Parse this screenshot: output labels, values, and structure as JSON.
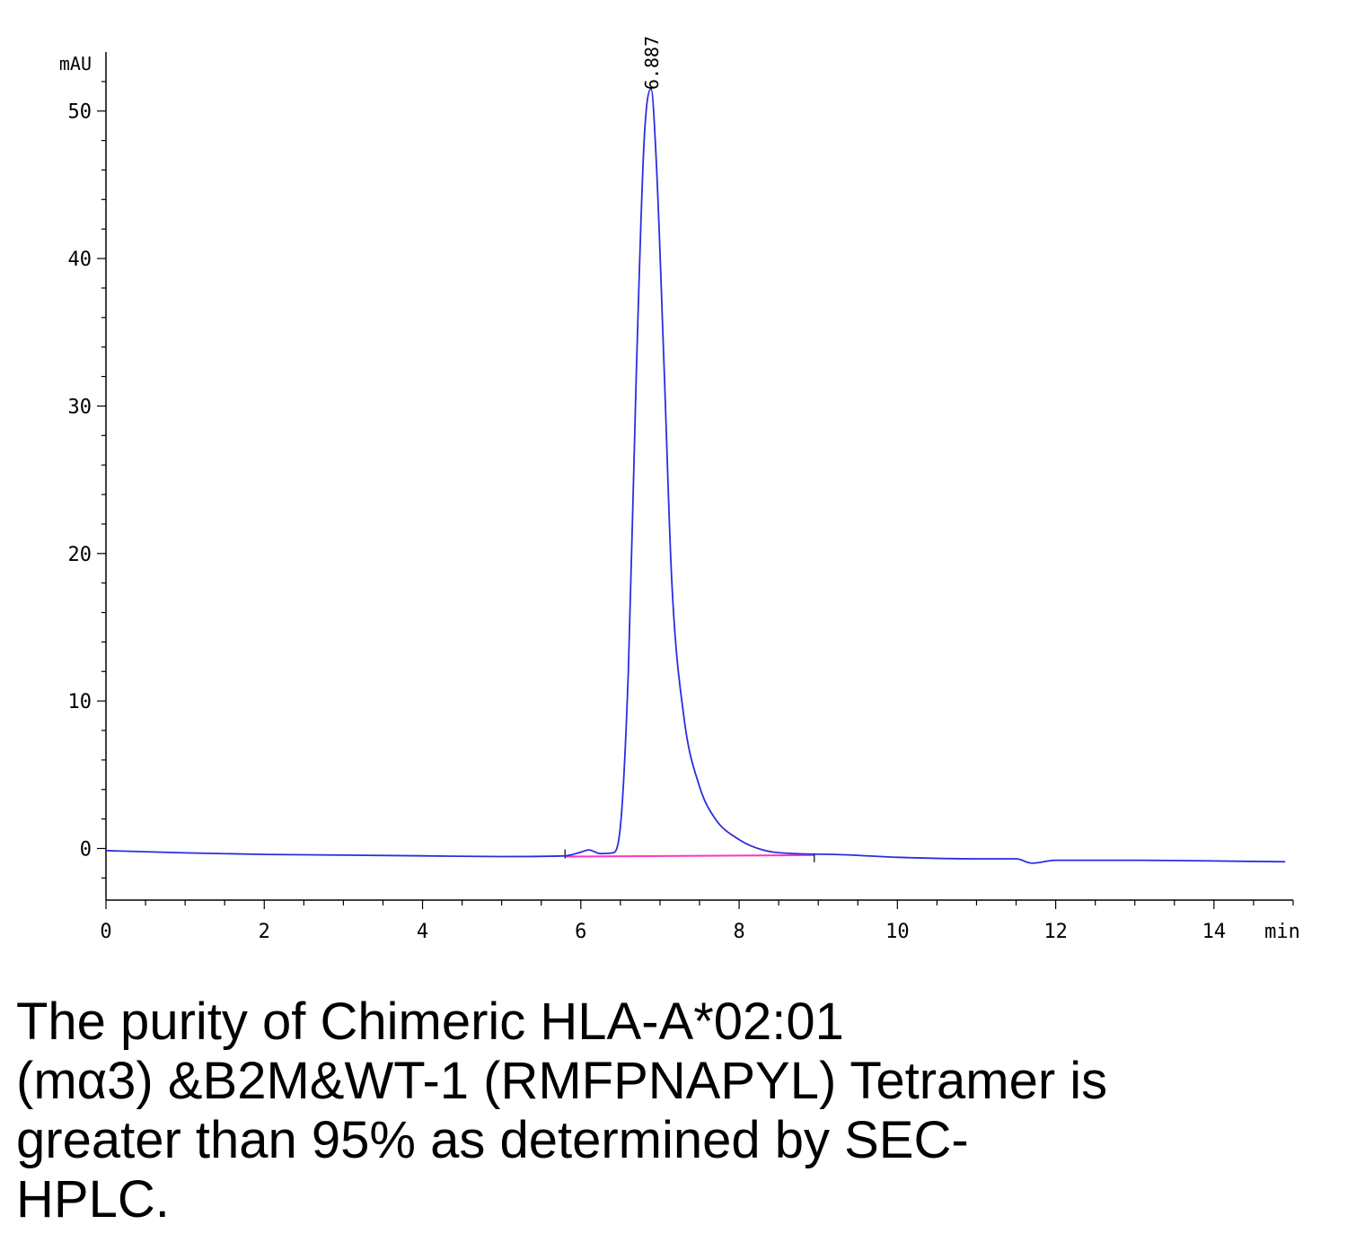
{
  "chart_data": {
    "type": "line",
    "title": "",
    "xlabel": "",
    "ylabel": "",
    "x_unit": "min",
    "y_unit": "mAU",
    "xlim": [
      0,
      15
    ],
    "ylim": [
      -3.5,
      54
    ],
    "x_ticks": [
      0,
      2,
      4,
      6,
      8,
      10,
      12,
      14
    ],
    "y_ticks": [
      0,
      10,
      20,
      30,
      40,
      50
    ],
    "grid": false,
    "legend": "none",
    "colors": {
      "signal": "#2c2ce0",
      "baseline": "#ff33cc"
    },
    "series": [
      {
        "color": "#2c2ce0",
        "x": [
          0,
          1,
          2,
          3,
          4,
          5,
          5.8,
          6.0,
          6.1,
          6.25,
          6.4,
          6.5,
          6.6,
          6.7,
          6.8,
          6.887,
          6.95,
          7.05,
          7.15,
          7.3,
          7.5,
          7.7,
          8.0,
          8.3,
          8.7,
          9.2,
          10,
          11,
          11.5,
          11.7,
          12,
          13,
          14,
          14.9
        ],
        "y": [
          -0.15,
          -0.3,
          -0.4,
          -0.45,
          -0.5,
          -0.55,
          -0.5,
          -0.25,
          -0.1,
          -0.35,
          -0.3,
          1.5,
          12,
          32,
          48,
          51.5,
          47,
          33,
          18,
          9,
          4.2,
          2.0,
          0.6,
          -0.1,
          -0.35,
          -0.4,
          -0.6,
          -0.7,
          -0.7,
          -1.0,
          -0.8,
          -0.8,
          -0.85,
          -0.9
        ]
      }
    ],
    "baseline": {
      "x": [
        5.8,
        8.95
      ],
      "y": [
        -0.55,
        -0.45
      ]
    },
    "annotations": [
      {
        "x": 6.887,
        "y": 51.5,
        "text": "6.887"
      }
    ],
    "caption_lines": [
      "The purity of Chimeric HLA-A*02:01",
      "(mα3) &B2M&WT-1 (RMFPNAPYL) Tetramer is",
      "greater than 95% as determined by SEC-",
      "HPLC."
    ]
  }
}
